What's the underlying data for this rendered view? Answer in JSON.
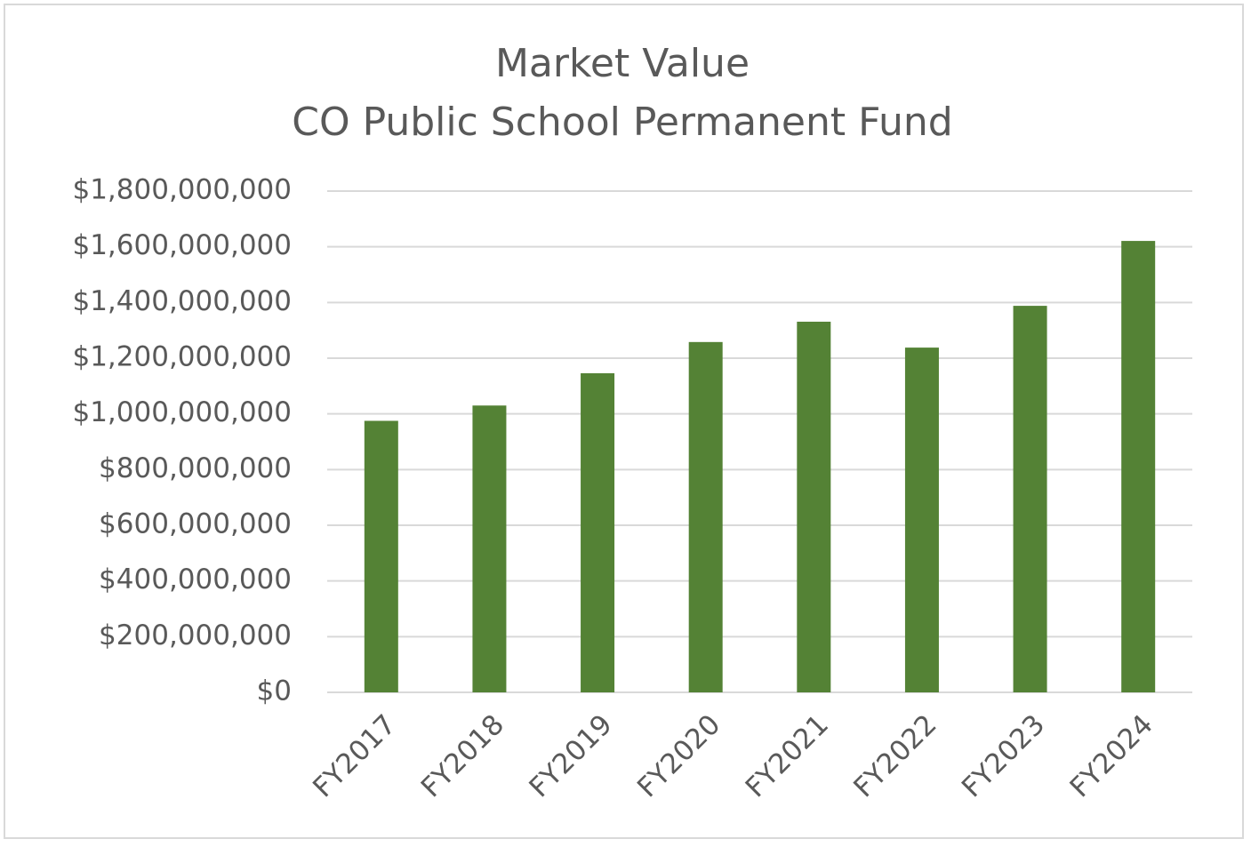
{
  "chart_data": {
    "type": "bar",
    "title": "Market Value",
    "subtitle": "CO Public School Permanent Fund",
    "categories": [
      "FY2017",
      "FY2018",
      "FY2019",
      "FY2020",
      "FY2021",
      "FY2022",
      "FY2023",
      "FY2024"
    ],
    "values": [
      975000000,
      1030000000,
      1146000000,
      1258000000,
      1331000000,
      1238000000,
      1388000000,
      1621000000
    ],
    "color": "#548235",
    "ylim": [
      0,
      1800000000
    ],
    "yticks": [
      {
        "value": 0,
        "label": "$0"
      },
      {
        "value": 200000000,
        "label": "$200,000,000"
      },
      {
        "value": 400000000,
        "label": "$400,000,000"
      },
      {
        "value": 600000000,
        "label": "$600,000,000"
      },
      {
        "value": 800000000,
        "label": "$800,000,000"
      },
      {
        "value": 1000000000,
        "label": "$1,000,000,000"
      },
      {
        "value": 1200000000,
        "label": "$1,200,000,000"
      },
      {
        "value": 1400000000,
        "label": "$1,400,000,000"
      },
      {
        "value": 1600000000,
        "label": "$1,600,000,000"
      },
      {
        "value": 1800000000,
        "label": "$1,800,000,000"
      }
    ],
    "grid": true
  }
}
